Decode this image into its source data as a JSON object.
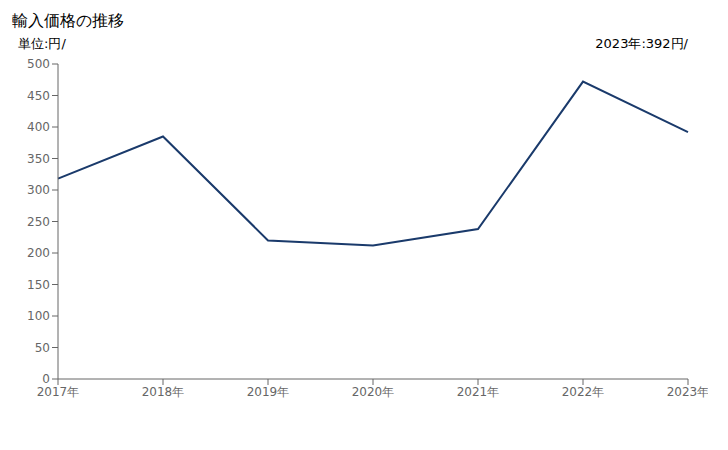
{
  "chart_data": {
    "type": "line",
    "title": "輸入価格の推移",
    "ylabel": "単位:円/",
    "annotation": "2023年:392円/",
    "categories": [
      "2017年",
      "2018年",
      "2019年",
      "2020年",
      "2021年",
      "2022年",
      "2023年"
    ],
    "values": [
      318,
      385,
      220,
      212,
      238,
      472,
      392
    ],
    "color": "#1a3a6b",
    "ylim": [
      0,
      500
    ],
    "yticks": [
      0,
      50,
      100,
      150,
      200,
      250,
      300,
      350,
      400,
      450,
      500
    ],
    "grid": false
  }
}
